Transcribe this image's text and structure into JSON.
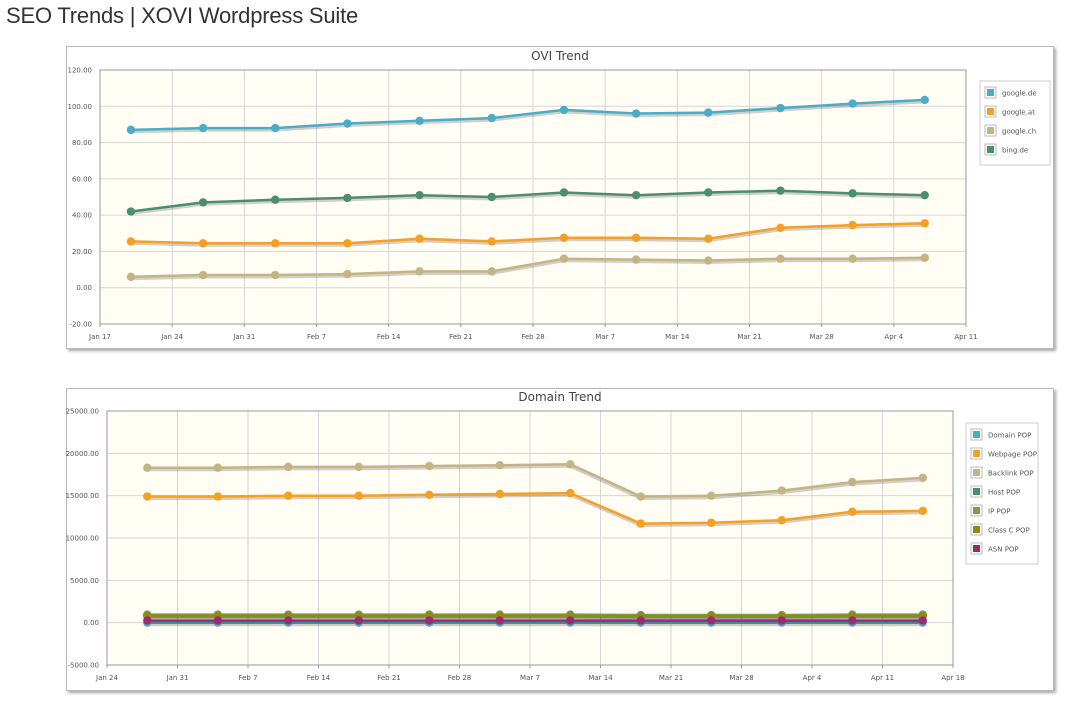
{
  "page": {
    "title": "SEO Trends | XOVI Wordpress Suite"
  },
  "colors": {
    "plot_bg": "#fffdf4",
    "grid": "#d6d6d6",
    "axis": "#999999"
  },
  "chart_data": [
    {
      "type": "line",
      "title": "OVI Trend",
      "x": [
        "Jan 20",
        "Jan 27",
        "Feb 3",
        "Feb 10",
        "Feb 17",
        "Feb 24",
        "Mar 3",
        "Mar 10",
        "Mar 17",
        "Mar 24",
        "Mar 31",
        "Apr 7"
      ],
      "x_ticks": [
        "Jan 17",
        "Jan 24",
        "Jan 31",
        "Feb 7",
        "Feb 14",
        "Feb 21",
        "Feb 28",
        "Mar 7",
        "Mar 14",
        "Mar 21",
        "Mar 28",
        "Apr 4",
        "Apr 11"
      ],
      "y_ticks": [
        "120.00",
        "100.00",
        "80.00",
        "60.00",
        "40.00",
        "20.00",
        "0.00",
        "-20.00"
      ],
      "ylim": [
        -20,
        120
      ],
      "grid": true,
      "legend_position": "right",
      "series": [
        {
          "name": "google.de",
          "color": "#4bacc6",
          "values": [
            87,
            88,
            88,
            90.5,
            92,
            93.5,
            98,
            96,
            96.5,
            99,
            101.5,
            103.5
          ]
        },
        {
          "name": "google.at",
          "color": "#f4a024",
          "values": [
            25.5,
            24.5,
            24.5,
            24.5,
            27,
            25.5,
            27.5,
            27.5,
            27,
            33,
            34.5,
            35.5
          ]
        },
        {
          "name": "google.ch",
          "color": "#c5b483",
          "values": [
            6,
            7,
            7,
            7.5,
            9,
            9,
            16,
            15.5,
            15,
            16,
            16,
            16.5
          ]
        },
        {
          "name": "bing.de",
          "color": "#4c8c6f",
          "values": [
            42,
            47,
            48.5,
            49.5,
            51,
            50,
            52.5,
            51,
            52.5,
            53.5,
            52,
            51
          ]
        }
      ]
    },
    {
      "type": "line",
      "title": "Domain Trend",
      "x": [
        "Jan 28",
        "Feb 4",
        "Feb 11",
        "Feb 18",
        "Feb 25",
        "Mar 4",
        "Mar 11",
        "Mar 18",
        "Mar 25",
        "Apr 1",
        "Apr 8",
        "Apr 15"
      ],
      "x_ticks": [
        "Jan 24",
        "Jan 31",
        "Feb 7",
        "Feb 14",
        "Feb 21",
        "Feb 28",
        "Mar 7",
        "Mar 14",
        "Mar 21",
        "Mar 28",
        "Apr 4",
        "Apr 11",
        "Apr 18"
      ],
      "y_ticks": [
        "25000.00",
        "20000.00",
        "15000.00",
        "10000.00",
        "5000.00",
        "0.00",
        "-5000.00"
      ],
      "ylim": [
        -5000,
        25000
      ],
      "grid": true,
      "legend_position": "right",
      "series": [
        {
          "name": "Domain POP",
          "color": "#4bacc6",
          "values": [
            0,
            0,
            0,
            0,
            0,
            0,
            0,
            0,
            0,
            0,
            0,
            0
          ]
        },
        {
          "name": "Webpage POP",
          "color": "#f4a024",
          "values": [
            14900,
            14900,
            15000,
            15000,
            15100,
            15200,
            15300,
            11700,
            11800,
            12100,
            13100,
            13200
          ]
        },
        {
          "name": "Backlink POP",
          "color": "#c5b483",
          "values": [
            18300,
            18300,
            18400,
            18400,
            18500,
            18600,
            18700,
            14900,
            15000,
            15600,
            16600,
            17100
          ]
        },
        {
          "name": "Host POP",
          "color": "#4c8c6f",
          "values": [
            850,
            850,
            850,
            850,
            850,
            850,
            850,
            800,
            800,
            800,
            850,
            850
          ]
        },
        {
          "name": "IP POP",
          "color": "#7f9a48",
          "values": [
            950,
            950,
            950,
            950,
            950,
            950,
            950,
            900,
            900,
            900,
            950,
            950
          ]
        },
        {
          "name": "Class C POP",
          "color": "#8c8a1c",
          "values": [
            800,
            800,
            800,
            800,
            800,
            800,
            800,
            750,
            750,
            750,
            800,
            800
          ]
        },
        {
          "name": "ASN POP",
          "color": "#9b2b70",
          "values": [
            250,
            250,
            250,
            250,
            250,
            250,
            250,
            250,
            250,
            250,
            250,
            250
          ]
        }
      ]
    }
  ]
}
